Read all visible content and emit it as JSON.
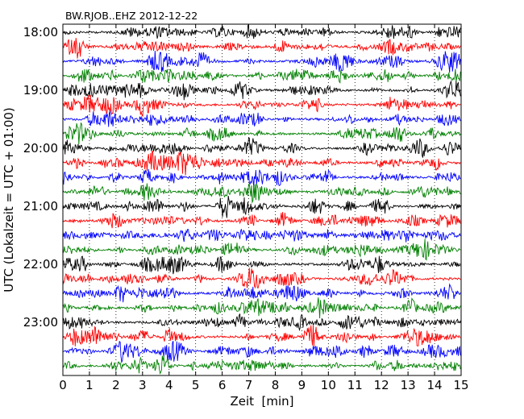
{
  "chart_data": {
    "type": "line",
    "title": "BW.RJOB..EHZ 2012-12-22",
    "xlabel": "Zeit  [min]",
    "ylabel": "UTC (Lokalzeit = UTC + 01:00)",
    "xlim": [
      0,
      15
    ],
    "x_ticks": [
      "0",
      "1",
      "2",
      "3",
      "4",
      "5",
      "6",
      "7",
      "8",
      "9",
      "10",
      "11",
      "12",
      "13",
      "14",
      "15"
    ],
    "ylim": [
      "18:00",
      "23:45"
    ],
    "y_ticks": [
      "18:00",
      "19:00",
      "20:00",
      "21:00",
      "22:00",
      "23:00"
    ],
    "x_gridlines": "dotted vertical at every minute",
    "trace_interval_min": 15,
    "trace_count": 24,
    "trace_start_times": [
      "18:00",
      "18:15",
      "18:30",
      "18:45",
      "19:00",
      "19:15",
      "19:30",
      "19:45",
      "20:00",
      "20:15",
      "20:30",
      "20:45",
      "21:00",
      "21:15",
      "21:30",
      "21:45",
      "22:00",
      "22:15",
      "22:30",
      "22:45",
      "23:00",
      "23:15",
      "23:30",
      "23:45"
    ],
    "color_cycle": [
      "#000000",
      "#ff0000",
      "#0000ff",
      "#008000"
    ],
    "legend": "none",
    "grid": true
  }
}
